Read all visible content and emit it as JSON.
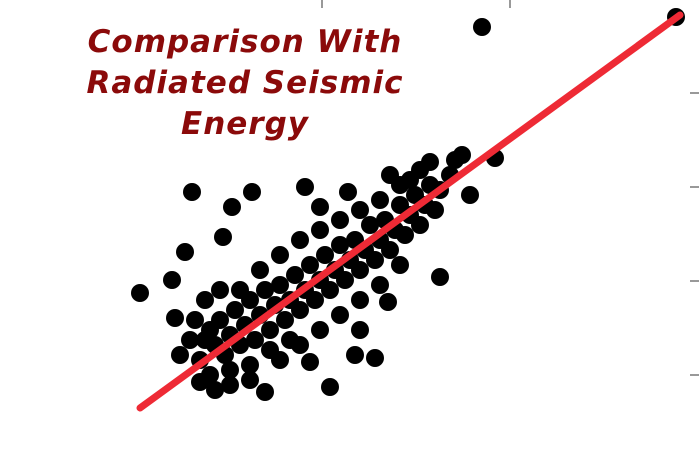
{
  "chart_data": {
    "type": "scatter",
    "title": "Comparison With Radiated Seismic Energy",
    "xlim": [
      0,
      700
    ],
    "ylim": [
      0,
      450
    ],
    "xticks": [
      322,
      510
    ],
    "yticks": [
      75,
      169,
      263,
      357
    ],
    "points": {
      "color": "#000000",
      "x": [
        482,
        676,
        192,
        252,
        232,
        185,
        140,
        223,
        305,
        348,
        320,
        462,
        495,
        470,
        430,
        440,
        388,
        375,
        330,
        265,
        200,
        180,
        175,
        172,
        310,
        355,
        360,
        200,
        205,
        210,
        215,
        220,
        225,
        230,
        235,
        240,
        245,
        250,
        255,
        260,
        265,
        270,
        275,
        280,
        285,
        290,
        295,
        300,
        305,
        310,
        315,
        320,
        325,
        330,
        335,
        340,
        345,
        350,
        355,
        360,
        365,
        370,
        375,
        380,
        385,
        390,
        395,
        400,
        405,
        410,
        415,
        420,
        425,
        430,
        435,
        440,
        210,
        230,
        250,
        270,
        290,
        240,
        260,
        280,
        300,
        320,
        340,
        360,
        380,
        400,
        420,
        280,
        300,
        320,
        340,
        360,
        380,
        400,
        195,
        205,
        220,
        190,
        450,
        455,
        410,
        390,
        250,
        230,
        215
      ],
      "y": [
        423,
        433,
        258,
        258,
        243,
        198,
        157,
        213,
        263,
        258,
        243,
        295,
        292,
        255,
        288,
        173,
        148,
        92,
        63,
        58,
        68,
        95,
        132,
        170,
        88,
        95,
        120,
        90,
        110,
        120,
        105,
        130,
        95,
        115,
        140,
        105,
        125,
        150,
        110,
        135,
        160,
        120,
        145,
        165,
        130,
        150,
        175,
        140,
        160,
        185,
        150,
        170,
        195,
        160,
        180,
        205,
        170,
        190,
        210,
        180,
        200,
        225,
        190,
        210,
        230,
        200,
        220,
        245,
        215,
        235,
        255,
        225,
        245,
        265,
        240,
        260,
        75,
        80,
        85,
        100,
        110,
        160,
        180,
        195,
        210,
        220,
        230,
        240,
        250,
        265,
        280,
        90,
        105,
        120,
        135,
        150,
        165,
        185,
        130,
        150,
        160,
        110,
        275,
        290,
        270,
        275,
        70,
        65,
        60
      ]
    },
    "fit_line": {
      "color": "#ee2a35",
      "x": [
        140,
        680
      ],
      "y": [
        42,
        435
      ]
    }
  }
}
